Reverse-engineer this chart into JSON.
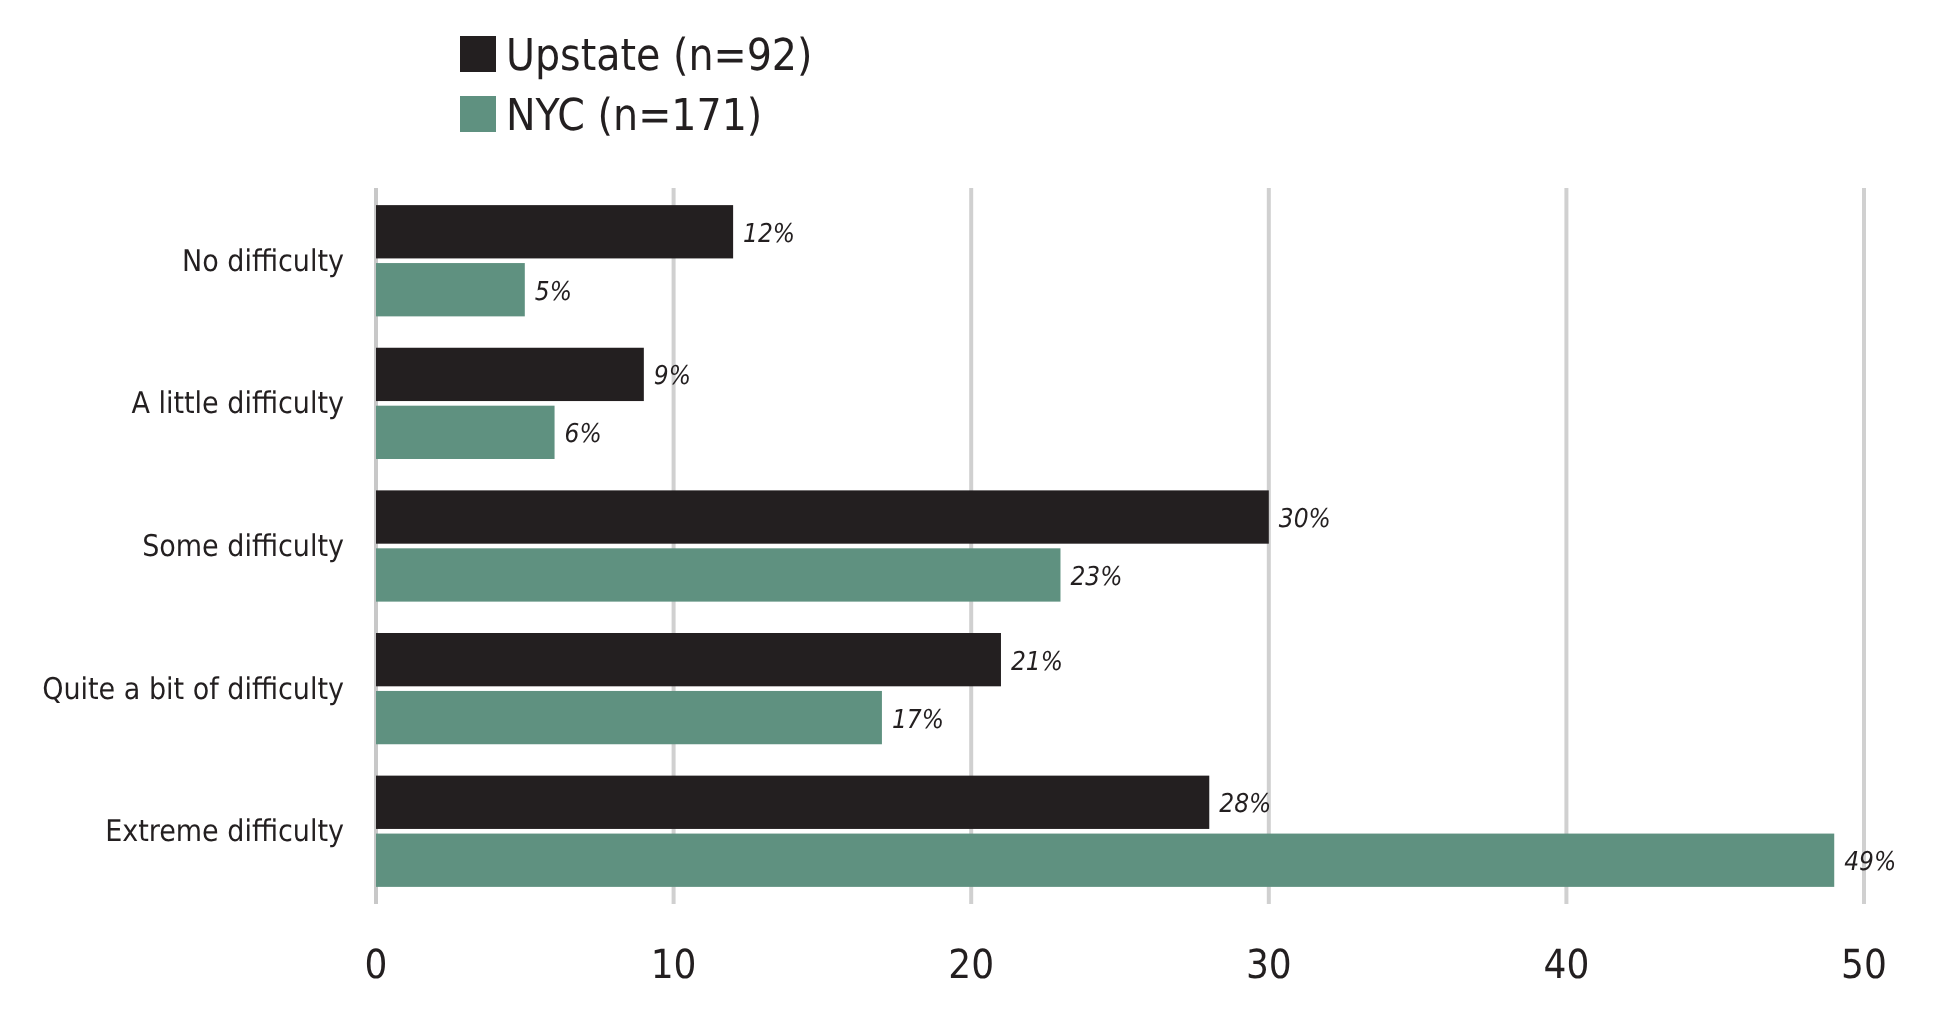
{
  "chart_data": {
    "type": "bar",
    "orientation": "horizontal",
    "categories": [
      "No difficulty",
      "A little difficulty",
      "Some difficulty",
      "Quite a bit of difficulty",
      "Extreme difficulty"
    ],
    "series": [
      {
        "name": "Upstate (n=92)",
        "color": "#231f20",
        "values": [
          12,
          9,
          30,
          21,
          28
        ],
        "value_labels": [
          "12%",
          "9%",
          "30%",
          "21%",
          "28%"
        ]
      },
      {
        "name": "NYC (n=171)",
        "color": "#5f9180",
        "values": [
          5,
          6,
          23,
          17,
          49
        ],
        "value_labels": [
          "5%",
          "6%",
          "23%",
          "17%",
          "49%"
        ]
      }
    ],
    "xlim": [
      0,
      50
    ],
    "xticks": [
      0,
      10,
      20,
      30,
      40,
      50
    ],
    "grid": "x",
    "legend": "top left"
  }
}
